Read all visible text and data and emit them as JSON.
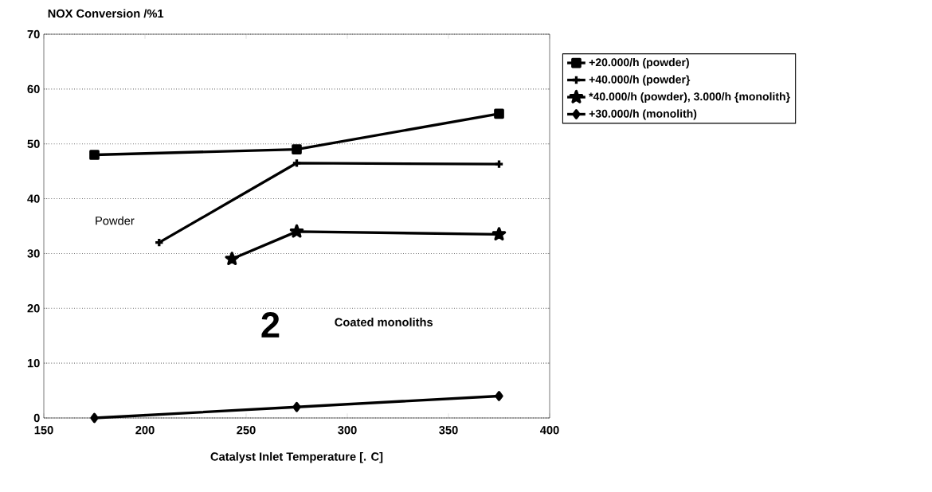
{
  "chart_data": {
    "type": "line",
    "ylabel": "NOX Conversion /%1",
    "xlabel": "Catalyst Inlet Temperature [. C]",
    "xlim": [
      150,
      400
    ],
    "xticks": [
      150,
      200,
      250,
      300,
      350,
      400
    ],
    "ylim": [
      0,
      70
    ],
    "yticks": [
      0,
      10,
      20,
      30,
      40,
      50,
      60,
      70
    ],
    "grid": "y",
    "legend": "right",
    "series": [
      {
        "name": "+20.000/h   (powder)",
        "color": "#000000",
        "marker": "square",
        "x": [
          175,
          275,
          375
        ],
        "values": [
          48,
          49,
          55.5
        ]
      },
      {
        "name": "+40.000/h   (powder}",
        "color": "#000000",
        "marker": "cross",
        "x": [
          207,
          275,
          375
        ],
        "values": [
          32,
          46.5,
          46.3
        ]
      },
      {
        "name": "*40.000/h  (powder), 3.000/h  {monolith}",
        "color": "#000000",
        "marker": "star",
        "x": [
          243,
          275,
          375
        ],
        "values": [
          29,
          34,
          33.5
        ]
      },
      {
        "name": "+30.000/h   (monolith)",
        "color": "#000000",
        "marker": "diamond",
        "x": [
          175,
          275,
          375
        ],
        "values": [
          0,
          2,
          4
        ]
      }
    ],
    "annotations": [
      "Powder",
      "2",
      "Coated monoliths"
    ]
  }
}
